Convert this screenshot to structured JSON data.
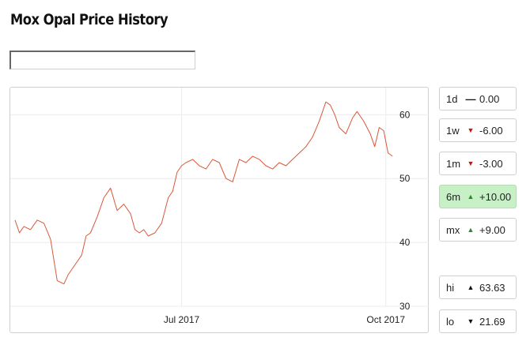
{
  "title": "Mox Opal Price History",
  "search": {
    "value": "",
    "placeholder": ""
  },
  "range_buttons": [
    {
      "label": "1d",
      "arrow": "flat",
      "value": "0.00",
      "active": false
    },
    {
      "label": "1w",
      "arrow": "down",
      "value": "-6.00",
      "active": false
    },
    {
      "label": "1m",
      "arrow": "down",
      "value": "-3.00",
      "active": false
    },
    {
      "label": "6m",
      "arrow": "up",
      "value": "+10.00",
      "active": true
    },
    {
      "label": "mx",
      "arrow": "up",
      "value": "+9.00",
      "active": false
    }
  ],
  "stats": [
    {
      "label": "hi",
      "arrow": "up",
      "value": "63.63"
    },
    {
      "label": "lo",
      "arrow": "down",
      "value": "21.69"
    }
  ],
  "colors": {
    "line": "#d9573a",
    "arrow_up": "#2a8a2a",
    "arrow_down": "#d01010",
    "arrow_neutral": "#111111",
    "active_bg": "#c7f0c7"
  },
  "chart_data": {
    "type": "line",
    "title": "",
    "xlabel": "",
    "ylabel": "",
    "x_ticks": [
      "Jul 2017",
      "Oct 2017"
    ],
    "y_ticks": [
      30,
      40,
      50,
      60
    ],
    "ylim": [
      30,
      63.5
    ],
    "xlim": [
      "2017-04-17",
      "2017-10-05"
    ],
    "y_axis_position": "right",
    "grid": "horizontal",
    "series": [
      {
        "x": [
          "2017-04-17",
          "2017-04-19",
          "2017-04-21",
          "2017-04-24",
          "2017-04-27",
          "2017-04-30",
          "2017-05-03",
          "2017-05-06",
          "2017-05-09",
          "2017-05-11",
          "2017-05-13",
          "2017-05-15",
          "2017-05-17",
          "2017-05-19",
          "2017-05-21",
          "2017-05-24",
          "2017-05-27",
          "2017-05-30",
          "2017-06-02",
          "2017-06-05",
          "2017-06-08",
          "2017-06-10",
          "2017-06-12",
          "2017-06-14",
          "2017-06-16",
          "2017-06-19",
          "2017-06-22",
          "2017-06-25",
          "2017-06-27",
          "2017-06-29",
          "2017-07-01",
          "2017-07-03",
          "2017-07-06",
          "2017-07-09",
          "2017-07-12",
          "2017-07-15",
          "2017-07-18",
          "2017-07-21",
          "2017-07-24",
          "2017-07-27",
          "2017-07-30",
          "2017-08-02",
          "2017-08-05",
          "2017-08-08",
          "2017-08-11",
          "2017-08-14",
          "2017-08-17",
          "2017-08-20",
          "2017-08-23",
          "2017-08-26",
          "2017-08-29",
          "2017-09-01",
          "2017-09-04",
          "2017-09-06",
          "2017-09-08",
          "2017-09-10",
          "2017-09-13",
          "2017-09-16",
          "2017-09-18",
          "2017-09-21",
          "2017-09-24",
          "2017-09-26",
          "2017-09-28",
          "2017-09-30",
          "2017-10-02",
          "2017-10-04"
        ],
        "values": [
          43.5,
          41.5,
          42.5,
          42,
          43.5,
          43,
          40.5,
          34,
          33.5,
          35,
          36,
          37,
          38,
          41,
          41.5,
          44,
          47,
          48.5,
          45,
          46,
          44.5,
          42,
          41.5,
          42,
          41,
          41.5,
          43,
          47,
          48,
          51,
          52,
          52.5,
          53,
          52,
          51.5,
          53,
          52.5,
          50,
          49.5,
          53,
          52.5,
          53.5,
          53,
          52,
          51.5,
          52.5,
          52,
          53,
          54,
          55,
          56.5,
          59,
          62,
          61.5,
          60,
          58,
          57,
          59.5,
          60.5,
          59,
          57,
          55,
          58,
          57.5,
          54,
          53.5
        ]
      }
    ]
  }
}
